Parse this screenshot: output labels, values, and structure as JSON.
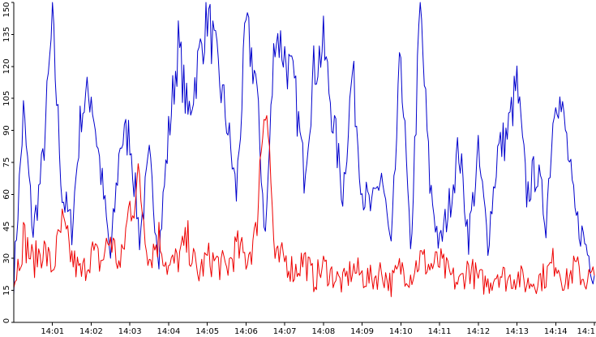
{
  "chart_data": {
    "type": "line",
    "title": "",
    "xlabel": "",
    "ylabel": "",
    "grid": false,
    "legend": "none",
    "x_range": [
      "14:00:00",
      "14:15:00"
    ],
    "ylim": [
      0,
      150
    ],
    "y_ticks": [
      "0",
      "15",
      "30",
      "45",
      "60",
      "75",
      "90",
      "105",
      "120",
      "135",
      "150"
    ],
    "x_ticks": [
      "14:01",
      "14:02",
      "14:03",
      "14:04",
      "14:05",
      "14:06",
      "14:07",
      "14:08",
      "14:09",
      "14:10",
      "14:11",
      "14:12",
      "14:13",
      "14:14",
      "14:1"
    ],
    "series": [
      {
        "color": "#0000cc",
        "x": [
          "14:00:00",
          "14:00:15",
          "14:00:30",
          "14:00:45",
          "14:01:00",
          "14:01:15",
          "14:01:30",
          "14:01:45",
          "14:02:00",
          "14:02:15",
          "14:02:30",
          "14:02:45",
          "14:03:00",
          "14:03:15",
          "14:03:30",
          "14:03:45",
          "14:04:00",
          "14:04:15",
          "14:04:30",
          "14:04:45",
          "14:05:00",
          "14:05:15",
          "14:05:30",
          "14:05:45",
          "14:06:00",
          "14:06:15",
          "14:06:30",
          "14:06:45",
          "14:07:00",
          "14:07:15",
          "14:07:30",
          "14:07:45",
          "14:08:00",
          "14:08:15",
          "14:08:30",
          "14:08:45",
          "14:09:00",
          "14:09:15",
          "14:09:30",
          "14:09:45",
          "14:10:00",
          "14:10:15",
          "14:10:30",
          "14:10:45",
          "14:11:00",
          "14:11:15",
          "14:11:30",
          "14:11:45",
          "14:12:00",
          "14:12:15",
          "14:12:30",
          "14:12:45",
          "14:13:00",
          "14:13:15",
          "14:13:30",
          "14:13:45",
          "14:14:00",
          "14:14:15",
          "14:14:30",
          "14:14:45",
          "14:15:00"
        ],
        "y": [
          20,
          98,
          42,
          75,
          140,
          60,
          44,
          100,
          108,
          70,
          30,
          85,
          88,
          40,
          75,
          33,
          88,
          130,
          96,
          120,
          145,
          120,
          95,
          60,
          138,
          115,
          40,
          138,
          125,
          110,
          70,
          118,
          130,
          95,
          60,
          118,
          62,
          52,
          70,
          32,
          128,
          30,
          148,
          65,
          35,
          55,
          82,
          40,
          78,
          38,
          80,
          88,
          112,
          60,
          72,
          48,
          112,
          90,
          50,
          38,
          22
        ]
      },
      {
        "color": "#ee0000",
        "x": [
          "14:00:00",
          "14:00:15",
          "14:00:30",
          "14:00:45",
          "14:01:00",
          "14:01:15",
          "14:01:30",
          "14:01:45",
          "14:02:00",
          "14:02:15",
          "14:02:30",
          "14:02:45",
          "14:03:00",
          "14:03:15",
          "14:03:30",
          "14:03:45",
          "14:04:00",
          "14:04:15",
          "14:04:30",
          "14:04:45",
          "14:05:00",
          "14:05:15",
          "14:05:30",
          "14:05:45",
          "14:06:00",
          "14:06:15",
          "14:06:30",
          "14:06:45",
          "14:07:00",
          "14:07:15",
          "14:07:30",
          "14:07:45",
          "14:08:00",
          "14:08:15",
          "14:08:30",
          "14:08:45",
          "14:09:00",
          "14:09:15",
          "14:09:30",
          "14:09:45",
          "14:10:00",
          "14:10:15",
          "14:10:30",
          "14:10:45",
          "14:11:00",
          "14:11:15",
          "14:11:30",
          "14:11:45",
          "14:12:00",
          "14:12:15",
          "14:12:30",
          "14:12:45",
          "14:13:00",
          "14:13:15",
          "14:13:30",
          "14:13:45",
          "14:14:00",
          "14:14:15",
          "14:14:30",
          "14:14:45",
          "14:15:00"
        ],
        "y": [
          18,
          40,
          28,
          35,
          25,
          45,
          30,
          22,
          33,
          28,
          40,
          25,
          55,
          65,
          30,
          40,
          25,
          30,
          38,
          22,
          30,
          28,
          25,
          35,
          30,
          40,
          115,
          28,
          30,
          24,
          30,
          20,
          26,
          22,
          18,
          25,
          22,
          20,
          24,
          18,
          26,
          22,
          30,
          26,
          28,
          22,
          18,
          26,
          20,
          18,
          24,
          20,
          22,
          18,
          20,
          22,
          30,
          18,
          26,
          20,
          22
        ]
      }
    ]
  }
}
